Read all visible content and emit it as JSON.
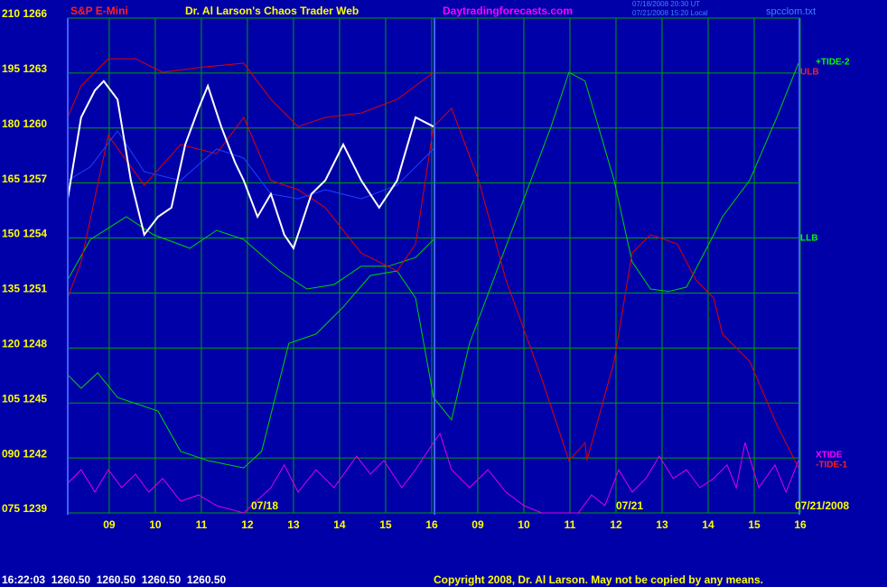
{
  "chart_data": {
    "type": "line",
    "instrument": "S&P E-Mini",
    "title": "Dr. Al Larson's Chaos Trader Web",
    "site": "Daytradingforecasts.com",
    "timestamps": [
      "07/18/2008 20:30 UT",
      "07/21/2008 15:20 Local"
    ],
    "file": "spcclom.txt",
    "annotations": [
      "07/18",
      "07/21",
      "07/21/2008"
    ],
    "status": "16:22:03  1260.50  1260.50  1260.50  1260.50",
    "copyright": "Copyright 2008, Dr. Al Larson. May not be copied by any means.",
    "grid": true,
    "grid_color": "#00a000",
    "xlim": [
      -0.9,
      15
    ],
    "xticks": [
      {
        "value": 0,
        "label": "09"
      },
      {
        "value": 1,
        "label": "10"
      },
      {
        "value": 2,
        "label": "11"
      },
      {
        "value": 3,
        "label": "12"
      },
      {
        "value": 4,
        "label": "13"
      },
      {
        "value": 5,
        "label": "14"
      },
      {
        "value": 6,
        "label": "15"
      },
      {
        "value": 7,
        "label": "16"
      },
      {
        "value": 8,
        "label": "09"
      },
      {
        "value": 9,
        "label": "10"
      },
      {
        "value": 10,
        "label": "11"
      },
      {
        "value": 11,
        "label": "12"
      },
      {
        "value": 12,
        "label": "13"
      },
      {
        "value": 13,
        "label": "14"
      },
      {
        "value": 14,
        "label": "15"
      },
      {
        "value": 15,
        "label": "16"
      }
    ],
    "ylim": [
      75,
      210
    ],
    "yticks": [
      {
        "value": 210,
        "label": "210 1266"
      },
      {
        "value": 195,
        "label": "195 1263"
      },
      {
        "value": 180,
        "label": "180 1260"
      },
      {
        "value": 165,
        "label": "165 1257"
      },
      {
        "value": 150,
        "label": "150 1254"
      },
      {
        "value": 135,
        "label": "135 1251"
      },
      {
        "value": 120,
        "label": "120 1248"
      },
      {
        "value": 105,
        "label": "105 1245"
      },
      {
        "value": 90,
        "label": "090 1242"
      },
      {
        "value": 75,
        "label": "075 1239"
      }
    ],
    "series": [
      {
        "name": "+TIDE-2",
        "color": "#00d000",
        "x": [
          -0.9,
          -0.61,
          -0.25,
          0.18,
          1.06,
          1.55,
          2.14,
          2.92,
          3.31,
          3.9,
          4.49,
          5.08,
          5.67,
          6.25,
          6.65,
          7.04,
          7.43,
          7.82,
          8.41,
          9.0,
          9.59,
          9.98,
          10.33,
          10.96,
          11.35,
          11.75,
          12.14,
          12.53,
          13.12,
          13.31,
          13.9,
          14.49,
          14.96
        ],
        "values": [
          112.7,
          109.0,
          113.2,
          106.5,
          102.8,
          91.8,
          89.3,
          87.3,
          91.8,
          121.3,
          123.8,
          131.2,
          139.8,
          141.0,
          133.6,
          106.5,
          100.4,
          121.3,
          141.0,
          160.7,
          180.4,
          195.2,
          192.8,
          165.7,
          143.5,
          136.1,
          135.4,
          136.6,
          150.9,
          155.8,
          165.7,
          182.9,
          197.7
        ]
      },
      {
        "name": "ULB",
        "color": "#e00000",
        "x": [
          -0.9,
          -0.61,
          -0.02,
          0.57,
          1.16,
          1.94,
          2.92,
          3.51,
          4.1,
          4.69,
          5.47,
          6.25,
          7.04
        ],
        "values": [
          182.9,
          191.5,
          198.9,
          198.9,
          195.2,
          196.5,
          197.7,
          187.8,
          180.4,
          182.9,
          184.1,
          187.8,
          195.2
        ]
      },
      {
        "name": "LLB",
        "color": "#00d000",
        "x": [
          -0.9,
          -0.41,
          0.37,
          0.96,
          1.75,
          2.33,
          2.92,
          3.71,
          4.29,
          4.88,
          5.47,
          6.06,
          6.65,
          7.04
        ],
        "values": [
          138.6,
          149.6,
          155.8,
          150.9,
          147.2,
          152.1,
          149.6,
          141.0,
          136.1,
          137.3,
          142.3,
          142.3,
          144.7,
          149.6
        ]
      },
      {
        "name": "XTIDE",
        "color": "#e000e0",
        "x": [
          -0.9,
          -0.61,
          -0.31,
          -0.02,
          0.27,
          0.57,
          0.86,
          1.16,
          1.55,
          1.94,
          2.33,
          2.92,
          3.51,
          3.8,
          4.1,
          4.49,
          4.88,
          5.37,
          5.67,
          5.96,
          6.35,
          6.65,
          6.84,
          7.18,
          7.43,
          7.82,
          8.22,
          8.61,
          9.0,
          9.39,
          10.18,
          10.47,
          10.76,
          11.06,
          11.35,
          11.65,
          11.94,
          12.24,
          12.53,
          12.82,
          13.12,
          13.41,
          13.61,
          13.8,
          14.1,
          14.45,
          14.69,
          14.96
        ],
        "values": [
          83.1,
          86.8,
          80.7,
          86.8,
          81.9,
          85.6,
          80.7,
          84.4,
          78.2,
          79.9,
          77.0,
          75,
          81.9,
          88.1,
          80.7,
          86.8,
          81.9,
          90.5,
          85.6,
          89.3,
          81.9,
          86.8,
          90.5,
          96.7,
          86.8,
          81.9,
          86.8,
          80.7,
          77.0,
          75,
          75,
          79.9,
          77.0,
          86.8,
          80.7,
          84.4,
          90.5,
          84.4,
          86.8,
          81.9,
          84.4,
          88.1,
          81.9,
          94.2,
          81.9,
          88.1,
          80.7,
          89.3
        ]
      },
      {
        "name": "-TIDE-1",
        "color": "#e00000",
        "x": [
          -0.9,
          -0.61,
          -0.02,
          0.76,
          1.55,
          2.33,
          2.92,
          3.51,
          4.1,
          4.69,
          5.47,
          6.25,
          6.65,
          7.04,
          7.43,
          8.02,
          8.61,
          9.39,
          9.98,
          10.33,
          10.37,
          10.96,
          11.35,
          11.75,
          12.33,
          12.73,
          13.12,
          13.31,
          13.9,
          14.49,
          14.96
        ],
        "values": [
          133.6,
          143.5,
          178.0,
          164.4,
          175.5,
          173.0,
          182.9,
          165.7,
          163.2,
          158.3,
          145.9,
          141.0,
          148.4,
          180.4,
          185.4,
          165.7,
          138.6,
          111.5,
          89.3,
          94.2,
          89.3,
          116.4,
          145.9,
          150.9,
          148.4,
          138.6,
          133.6,
          123.8,
          116.4,
          99.1,
          87.3
        ]
      },
      {
        "color": "#2040ff",
        "x": [
          -0.9,
          -0.41,
          0.18,
          0.76,
          1.55,
          2.33,
          2.92,
          3.51,
          4.1,
          4.69,
          5.47,
          6.25,
          7.04
        ],
        "values": [
          165.7,
          169.4,
          179.2,
          168.1,
          165.7,
          174.3,
          171.8,
          162.0,
          160.7,
          163.2,
          160.7,
          164.4,
          174.3
        ]
      },
      {
        "color": "#ffffff",
        "x": [
          -0.9,
          -0.61,
          -0.31,
          -0.12,
          0.18,
          0.47,
          0.76,
          1.06,
          1.35,
          1.65,
          1.94,
          2.14,
          2.43,
          2.73,
          2.92,
          3.22,
          3.51,
          3.8,
          4.0,
          4.39,
          4.69,
          5.08,
          5.47,
          5.86,
          6.25,
          6.65,
          7.04
        ],
        "values": [
          160.7,
          182.9,
          190.3,
          192.8,
          187.8,
          165.7,
          150.9,
          155.8,
          158.3,
          175.5,
          185.4,
          191.5,
          180.4,
          170.6,
          165.7,
          155.8,
          162.0,
          150.9,
          147.2,
          162.0,
          165.7,
          175.5,
          165.7,
          158.3,
          165.7,
          182.9,
          180.4
        ]
      }
    ]
  }
}
